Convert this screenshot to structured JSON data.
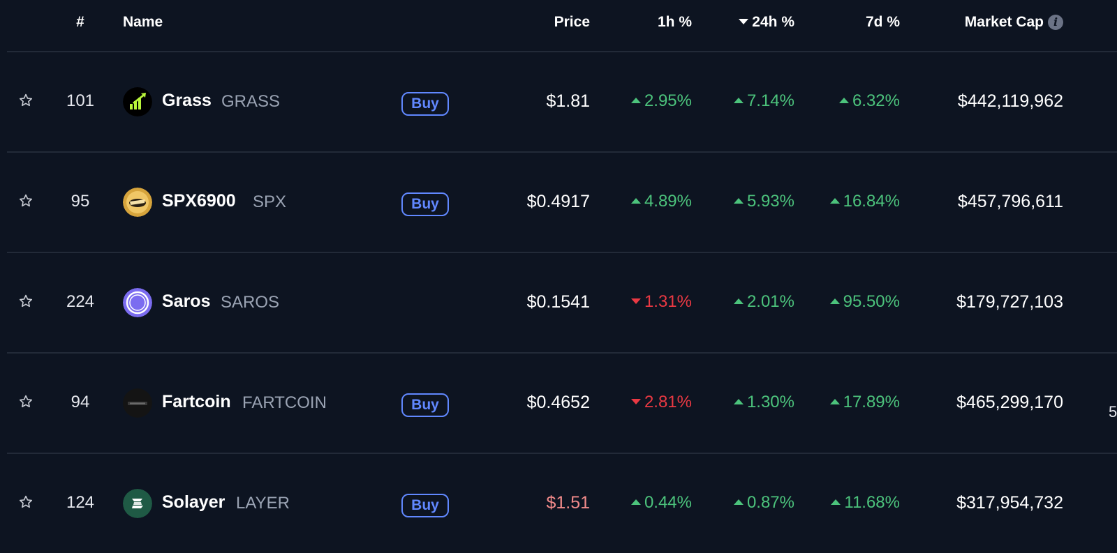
{
  "header": {
    "rank": "#",
    "name": "Name",
    "price": "Price",
    "h1": "1h %",
    "h24": "24h %",
    "d7": "7d %",
    "market_cap": "Market Cap",
    "info_glyph": "i"
  },
  "colors": {
    "background": "#0d1421",
    "positive": "#4cc37c",
    "negative": "#ea3943",
    "buy_accent": "#6188ff",
    "divider": "#222a38"
  },
  "rows": [
    {
      "rank": "101",
      "name": "Grass",
      "symbol": "GRASS",
      "buy_label": "Buy",
      "has_buy": true,
      "price": "$1.81",
      "price_color": "#ffffff",
      "h1": "2.95%",
      "h1_dir": "up",
      "h24": "7.14%",
      "h24_dir": "up",
      "d7": "6.32%",
      "d7_dir": "up",
      "market_cap": "$442,119,962",
      "logo_icon": "grass-logo-icon"
    },
    {
      "rank": "95",
      "name": "SPX6900",
      "symbol": "SPX",
      "buy_label": "Buy",
      "has_buy": true,
      "price": "$0.4917",
      "price_color": "#ffffff",
      "h1": "4.89%",
      "h1_dir": "up",
      "h24": "5.93%",
      "h24_dir": "up",
      "d7": "16.84%",
      "d7_dir": "up",
      "market_cap": "$457,796,611",
      "logo_icon": "spx6900-logo-icon"
    },
    {
      "rank": "224",
      "name": "Saros",
      "symbol": "SAROS",
      "buy_label": "",
      "has_buy": false,
      "price": "$0.1541",
      "price_color": "#ffffff",
      "h1": "1.31%",
      "h1_dir": "down",
      "h24": "2.01%",
      "h24_dir": "up",
      "d7": "95.50%",
      "d7_dir": "up",
      "market_cap": "$179,727,103",
      "logo_icon": "saros-logo-icon"
    },
    {
      "rank": "94",
      "name": "Fartcoin",
      "symbol": "FARTCOIN",
      "buy_label": "Buy",
      "has_buy": true,
      "price": "$0.4652",
      "price_color": "#ffffff",
      "h1": "2.81%",
      "h1_dir": "down",
      "h24": "1.30%",
      "h24_dir": "up",
      "d7": "17.89%",
      "d7_dir": "up",
      "market_cap": "$465,299,170",
      "logo_icon": "fartcoin-logo-icon"
    },
    {
      "rank": "124",
      "name": "Solayer",
      "symbol": "LAYER",
      "buy_label": "Buy",
      "has_buy": true,
      "price": "$1.51",
      "price_color": "#f28b8b",
      "h1": "0.44%",
      "h1_dir": "up",
      "h24": "0.87%",
      "h24_dir": "up",
      "d7": "11.68%",
      "d7_dir": "up",
      "market_cap": "$317,954,732",
      "logo_icon": "solayer-logo-icon"
    }
  ],
  "edge_fragment": "5"
}
